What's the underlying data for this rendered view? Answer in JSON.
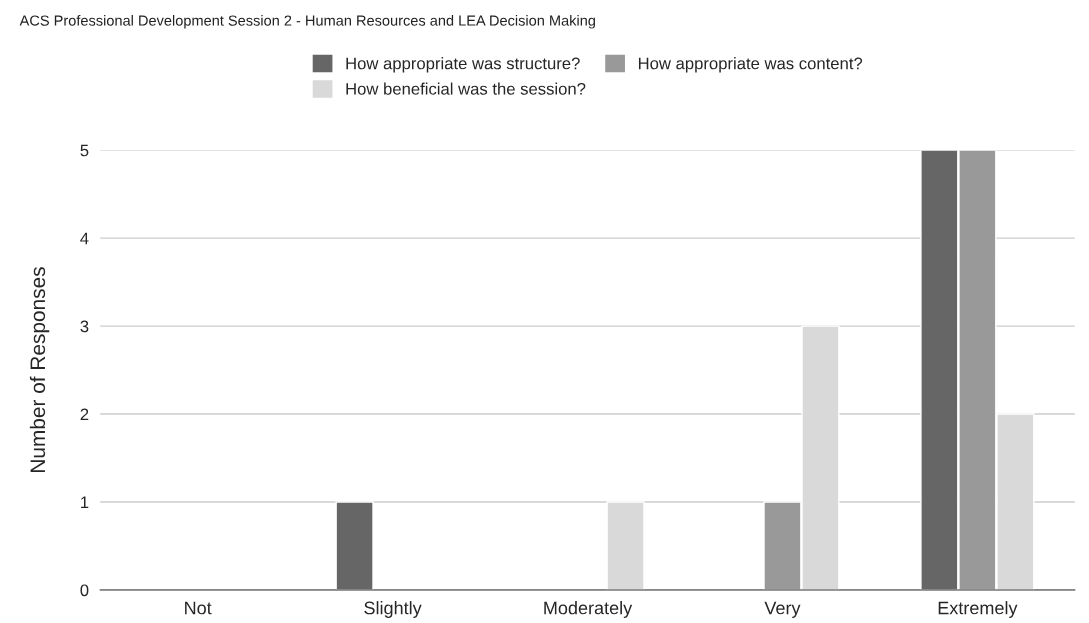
{
  "chart_data": {
    "type": "bar",
    "title": "ACS Professional Development Session 2 - Human Resources and LEA Decision Making",
    "ylabel": "Number of Responses",
    "categories": [
      "Not",
      "Slightly",
      "Moderately",
      "Very",
      "Extremely"
    ],
    "series": [
      {
        "name": "How appropriate was structure?",
        "color": "#666666",
        "values": [
          0,
          1,
          0,
          0,
          5
        ]
      },
      {
        "name": "How appropriate was content?",
        "color": "#999999",
        "values": [
          0,
          0,
          0,
          1,
          5
        ]
      },
      {
        "name": "How beneficial was the session?",
        "color": "#d9d9d9",
        "values": [
          0,
          0,
          1,
          3,
          2
        ]
      }
    ],
    "ylim": [
      0,
      5
    ],
    "yticks": [
      0,
      1,
      2,
      3,
      4,
      5
    ],
    "grid": "y",
    "legend": "top"
  }
}
